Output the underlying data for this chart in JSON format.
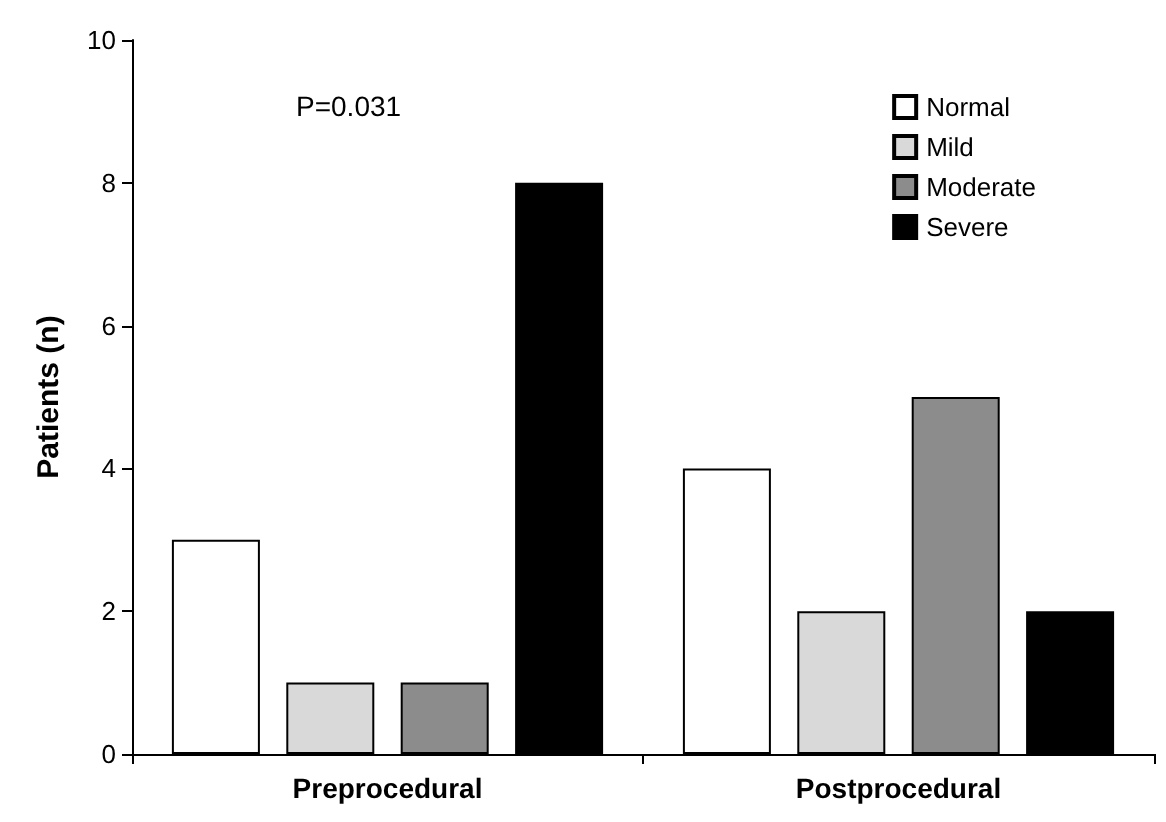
{
  "chart_data": {
    "type": "bar",
    "ylabel": "Patients (n)",
    "categories": [
      "Preprocedural",
      "Postprocedural"
    ],
    "series": [
      {
        "name": "Normal",
        "color": "#ffffff",
        "values": [
          3,
          4
        ]
      },
      {
        "name": "Mild",
        "color": "#d9d9d9",
        "values": [
          1,
          2
        ]
      },
      {
        "name": "Moderate",
        "color": "#8c8c8c",
        "values": [
          1,
          5
        ]
      },
      {
        "name": "Severe",
        "color": "#000000",
        "values": [
          8,
          2
        ]
      }
    ],
    "ylim": [
      0,
      10
    ],
    "yticks": [
      0,
      2,
      4,
      6,
      8,
      10
    ],
    "grid": false,
    "legend": "top right",
    "annotations": [
      "P=0.031"
    ]
  }
}
